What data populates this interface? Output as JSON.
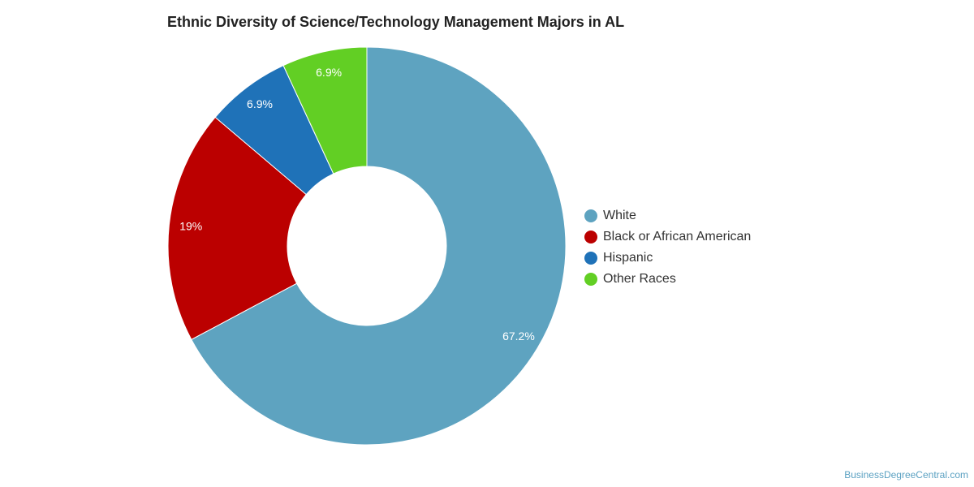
{
  "chart_data": {
    "type": "pie",
    "variant": "donut",
    "title": "Ethnic Diversity of Science/Technology Management Majors in AL",
    "categories": [
      "White",
      "Black or African American",
      "Hispanic",
      "Other Races"
    ],
    "values": [
      67.2,
      19,
      6.9,
      6.9
    ],
    "value_labels": [
      "67.2%",
      "19%",
      "6.9%",
      "6.9%"
    ],
    "colors": [
      "#5ea3c0",
      "#bb0000",
      "#1f72b8",
      "#62cf24"
    ],
    "legend_position": "right"
  },
  "credit": "BusinessDegreeCentral.com"
}
